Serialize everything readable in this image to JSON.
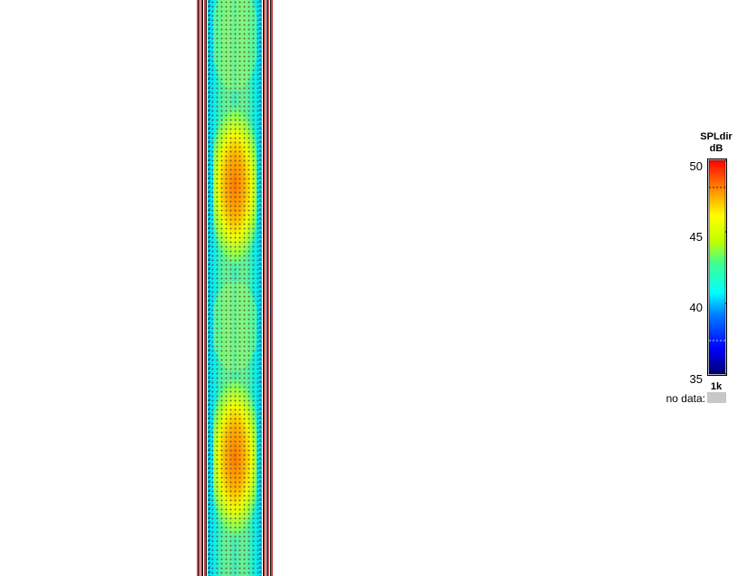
{
  "plot": {
    "legend": {
      "title": "SPLdir",
      "unit": "dB",
      "frequency": "1k",
      "ticks": [
        "50",
        "45",
        "40",
        "35"
      ],
      "min": 35,
      "max": 50,
      "colorscale": [
        "#000080",
        "#0000ff",
        "#0080ff",
        "#00ffff",
        "#40ff80",
        "#c0ff00",
        "#ffff00",
        "#ff8000",
        "#ff0000"
      ],
      "no_data_label": "no data:",
      "no_data_color": "#c8c8c8"
    },
    "strip": {
      "edge_color": "#c85050",
      "hot_zones": [
        "#ff8000",
        "#ff8000"
      ]
    }
  }
}
